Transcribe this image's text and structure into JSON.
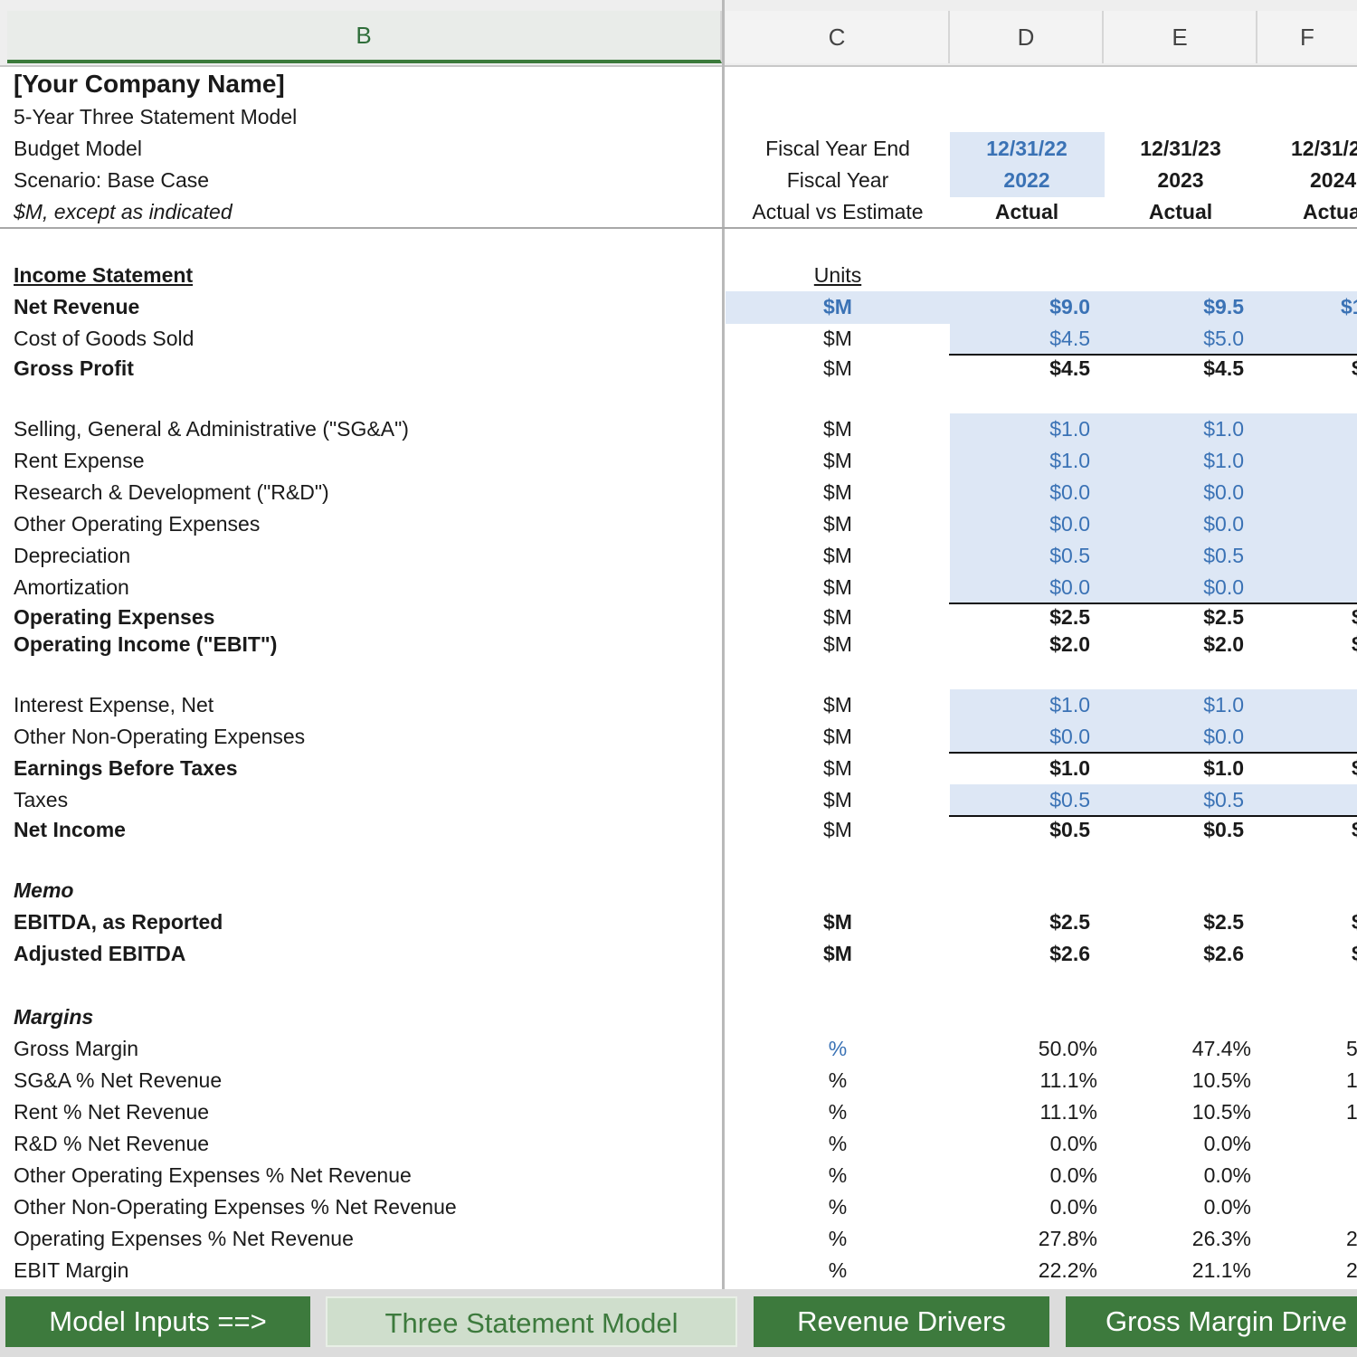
{
  "columns": {
    "b": "B",
    "c": "C",
    "d": "D",
    "e": "E",
    "f": "F"
  },
  "header": {
    "company": "[Your Company Name]",
    "subtitle": "5-Year Three Statement Model",
    "model_type": "Budget Model",
    "scenario": "Scenario: Base Case",
    "units_note": "$M, except as indicated",
    "fiscal_year_end_label": "Fiscal Year End",
    "fiscal_year_label": "Fiscal Year",
    "actual_vs_estimate_label": "Actual vs Estimate",
    "periods": [
      {
        "end": "12/31/22",
        "year": "2022",
        "status": "Actual"
      },
      {
        "end": "12/31/23",
        "year": "2023",
        "status": "Actual"
      },
      {
        "end": "12/31/2",
        "year": "2024",
        "status": "Actua"
      }
    ]
  },
  "sections": {
    "income_statement": "Income Statement",
    "units": "Units",
    "memo": "Memo",
    "margins": "Margins"
  },
  "rows": {
    "net_revenue": {
      "label": "Net Revenue",
      "unit": "$M",
      "d": "$9.0",
      "e": "$9.5",
      "f": "$1"
    },
    "cogs": {
      "label": "Cost of Goods Sold",
      "unit": "$M",
      "d": "$4.5",
      "e": "$5.0"
    },
    "gross_profit": {
      "label": "Gross Profit",
      "unit": "$M",
      "d": "$4.5",
      "e": "$4.5",
      "f": "$"
    },
    "sga": {
      "label": "Selling, General & Administrative (\"SG&A\")",
      "unit": "$M",
      "d": "$1.0",
      "e": "$1.0"
    },
    "rent": {
      "label": "Rent Expense",
      "unit": "$M",
      "d": "$1.0",
      "e": "$1.0"
    },
    "rnd": {
      "label": "Research & Development (\"R&D\")",
      "unit": "$M",
      "d": "$0.0",
      "e": "$0.0"
    },
    "other_opex": {
      "label": "Other Operating Expenses",
      "unit": "$M",
      "d": "$0.0",
      "e": "$0.0"
    },
    "depreciation": {
      "label": "Depreciation",
      "unit": "$M",
      "d": "$0.5",
      "e": "$0.5"
    },
    "amortization": {
      "label": "Amortization",
      "unit": "$M",
      "d": "$0.0",
      "e": "$0.0"
    },
    "opex": {
      "label": "Operating Expenses",
      "unit": "$M",
      "d": "$2.5",
      "e": "$2.5",
      "f": "$"
    },
    "ebit": {
      "label": "Operating Income (\"EBIT\")",
      "unit": "$M",
      "d": "$2.0",
      "e": "$2.0",
      "f": "$"
    },
    "interest": {
      "label": "Interest Expense, Net",
      "unit": "$M",
      "d": "$1.0",
      "e": "$1.0"
    },
    "other_nonop": {
      "label": "Other Non-Operating Expenses",
      "unit": "$M",
      "d": "$0.0",
      "e": "$0.0"
    },
    "ebt": {
      "label": "Earnings Before Taxes",
      "unit": "$M",
      "d": "$1.0",
      "e": "$1.0",
      "f": "$"
    },
    "taxes": {
      "label": "Taxes",
      "unit": "$M",
      "d": "$0.5",
      "e": "$0.5"
    },
    "net_income": {
      "label": "Net Income",
      "unit": "$M",
      "d": "$0.5",
      "e": "$0.5",
      "f": "$"
    },
    "ebitda_reported": {
      "label": "EBITDA, as Reported",
      "unit": "$M",
      "d": "$2.5",
      "e": "$2.5",
      "f": "$"
    },
    "ebitda_adjusted": {
      "label": "Adjusted EBITDA",
      "unit": "$M",
      "d": "$2.6",
      "e": "$2.6",
      "f": "$"
    },
    "gross_margin": {
      "label": "Gross Margin",
      "unit": "%",
      "d": "50.0%",
      "e": "47.4%",
      "f": "5"
    },
    "sga_pct": {
      "label": "SG&A % Net Revenue",
      "unit": "%",
      "d": "11.1%",
      "e": "10.5%",
      "f": "1"
    },
    "rent_pct": {
      "label": "Rent % Net Revenue",
      "unit": "%",
      "d": "11.1%",
      "e": "10.5%",
      "f": "1"
    },
    "rnd_pct": {
      "label": "R&D % Net Revenue",
      "unit": "%",
      "d": "0.0%",
      "e": "0.0%"
    },
    "other_opex_pct": {
      "label": "Other Operating Expenses % Net Revenue",
      "unit": "%",
      "d": "0.0%",
      "e": "0.0%"
    },
    "other_nonop_pct": {
      "label": "Other Non-Operating Expenses % Net Revenue",
      "unit": "%",
      "d": "0.0%",
      "e": "0.0%"
    },
    "opex_pct": {
      "label": "Operating Expenses % Net Revenue",
      "unit": "%",
      "d": "27.8%",
      "e": "26.3%",
      "f": "2"
    },
    "ebit_margin": {
      "label": "EBIT Margin",
      "unit": "%",
      "d": "22.2%",
      "e": "21.1%",
      "f": "2"
    }
  },
  "tabs": [
    "Model Inputs ==>",
    "Three Statement Model",
    "Revenue Drivers",
    "Gross Margin Drive"
  ],
  "colors": {
    "input_blue": "#3a72b5",
    "input_fill": "#dde7f5",
    "tab_green": "#3d7a3d"
  }
}
